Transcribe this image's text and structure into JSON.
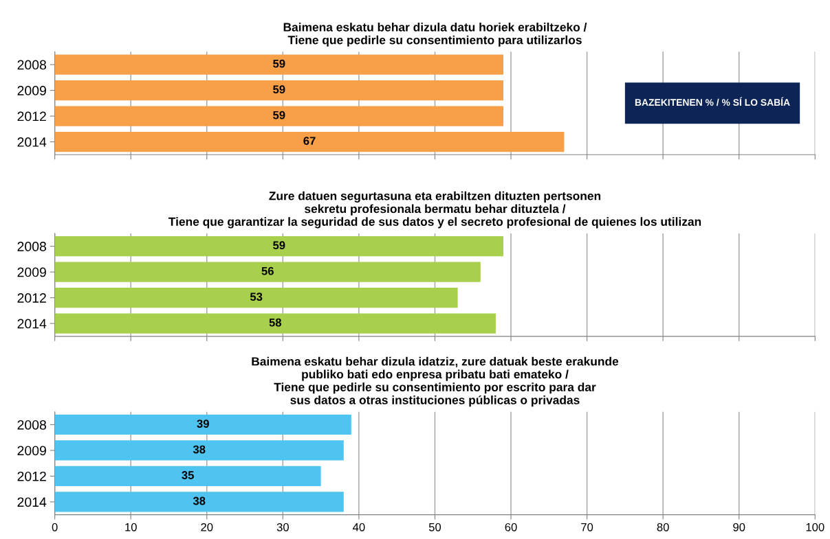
{
  "chart_data": [
    {
      "type": "bar",
      "orientation": "horizontal",
      "title": "Baimena eskatu behar dizula datu horiek erabiltzeko /\nTiene que pedirle su consentimiento para utilizarlos",
      "categories": [
        "2008",
        "2009",
        "2012",
        "2014"
      ],
      "values": [
        59,
        59,
        59,
        67
      ],
      "color": "#f8a048",
      "xlim": [
        0,
        100
      ],
      "xticks": [
        0,
        10,
        20,
        30,
        40,
        50,
        60,
        70,
        80,
        90,
        100
      ],
      "grid": "x",
      "data_labels": true,
      "tick_labels": "y",
      "annotations": [
        "BAZEKITENEN % / % SÍ LO SABÍA"
      ]
    },
    {
      "type": "bar",
      "orientation": "horizontal",
      "title": "Zure datuen segurtasuna eta erabiltzen dituzten pertsonen\nsekretu profesionala bermatu behar dituztela /\nTiene que garantizar la seguridad de sus datos y el secreto profesional de quienes los utilizan",
      "categories": [
        "2008",
        "2009",
        "2012",
        "2014"
      ],
      "values": [
        59,
        56,
        53,
        58
      ],
      "color": "#a8d04c",
      "xlim": [
        0,
        100
      ],
      "xticks": [
        0,
        10,
        20,
        30,
        40,
        50,
        60,
        70,
        80,
        90,
        100
      ],
      "grid": "x",
      "data_labels": true,
      "tick_labels": "y"
    },
    {
      "type": "bar",
      "orientation": "horizontal",
      "title": "Baimena eskatu behar dizula idatziz, zure datuak beste erakunde\npubliko bati edo enpresa pribatu bati emateko /\nTiene que pedirle su consentimiento por escrito para dar\nsus datos a otras instituciones públicas o privadas",
      "categories": [
        "2008",
        "2009",
        "2012",
        "2014"
      ],
      "values": [
        39,
        38,
        35,
        38
      ],
      "color": "#50c4f0",
      "xlim": [
        0,
        100
      ],
      "xticks": [
        0,
        10,
        20,
        30,
        40,
        50,
        60,
        70,
        80,
        90,
        100
      ],
      "grid": "x",
      "data_labels": true
    }
  ]
}
